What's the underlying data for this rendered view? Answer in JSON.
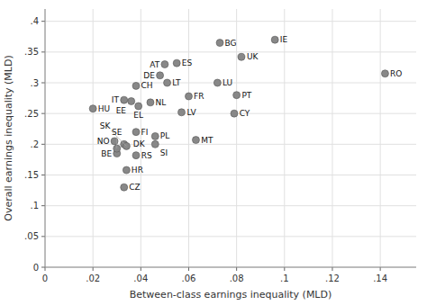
{
  "chart_data": {
    "type": "scatter",
    "labels": [
      "AT",
      "BE",
      "BG",
      "CH",
      "CY",
      "CZ",
      "DE",
      "DK",
      "EE",
      "EL",
      "ES",
      "FI",
      "FR",
      "HR",
      "HU",
      "IE",
      "IT",
      "LT",
      "LU",
      "LV",
      "MT",
      "NL",
      "NO",
      "PL",
      "PT",
      "RO",
      "RS",
      "SE",
      "SI",
      "SK",
      "UK"
    ],
    "x": [
      0.05,
      0.03,
      0.073,
      0.038,
      0.079,
      0.033,
      0.048,
      0.033,
      0.036,
      0.039,
      0.055,
      0.038,
      0.06,
      0.034,
      0.02,
      0.096,
      0.033,
      0.051,
      0.072,
      0.057,
      0.063,
      0.044,
      0.029,
      0.046,
      0.08,
      0.142,
      0.038,
      0.03,
      0.046,
      0.034,
      0.082
    ],
    "values": [
      0.33,
      0.185,
      0.365,
      0.295,
      0.25,
      0.13,
      0.312,
      0.2,
      0.27,
      0.262,
      0.332,
      0.22,
      0.278,
      0.158,
      0.258,
      0.37,
      0.272,
      0.3,
      0.3,
      0.252,
      0.207,
      0.268,
      0.205,
      0.213,
      0.28,
      0.315,
      0.182,
      0.193,
      0.2,
      0.197,
      0.342
    ],
    "xlabel": "Between-class earnings inequality (MLD)",
    "ylabel": "Overall earnings inequality (MLD)",
    "xlim": [
      0,
      0.155
    ],
    "ylim": [
      0,
      0.42
    ],
    "xticks": [
      0,
      {
        "value": 0.02,
        "label": ".02"
      },
      {
        "value": 0.04,
        "label": ".04"
      },
      {
        "value": 0.06,
        "label": ".06"
      },
      {
        "value": 0.08,
        "label": ".08"
      },
      {
        "value": 0.1,
        "label": ".1"
      },
      {
        "value": 0.12,
        "label": ".12"
      },
      {
        "value": 0.14,
        "label": ".14"
      }
    ],
    "yticks": [
      0,
      {
        "value": 0.05,
        "label": ".05"
      },
      {
        "value": 0.1,
        "label": ".1"
      },
      {
        "value": 0.15,
        "label": ".15"
      },
      {
        "value": 0.2,
        "label": ".2"
      },
      {
        "value": 0.25,
        "label": ".25"
      },
      {
        "value": 0.3,
        "label": ".3"
      },
      {
        "value": 0.35,
        "label": ".35"
      },
      {
        "value": 0.4,
        "label": ".4"
      }
    ],
    "color": "#888888",
    "grid": true
  }
}
